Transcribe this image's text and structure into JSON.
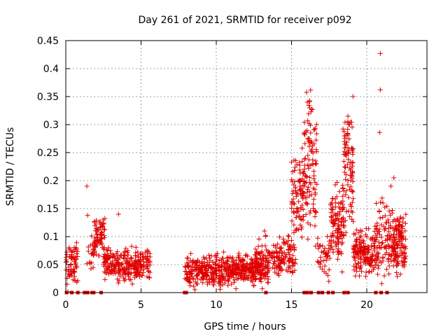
{
  "chart_data": {
    "type": "scatter",
    "title": "Day 261 of 2021, SRMTID for receiver p092",
    "xlabel": "GPS time / hours",
    "ylabel": "SRMTID / TECUs",
    "xlim": [
      0,
      24
    ],
    "ylim": [
      0,
      0.45
    ],
    "x_ticks": [
      0,
      5,
      10,
      15,
      20
    ],
    "x_tick_labels": [
      "0",
      "5",
      "10",
      "15",
      "20"
    ],
    "y_ticks": [
      0,
      0.05,
      0.1,
      0.15,
      0.2,
      0.25,
      0.3,
      0.35,
      0.4,
      0.45
    ],
    "y_tick_labels": [
      "0",
      "0.05",
      "0.1",
      "0.15",
      "0.2",
      "0.25",
      "0.3",
      "0.35",
      "0.4",
      "0.45"
    ],
    "grid": true,
    "marker": "+",
    "series_color": "#e00000",
    "activity_segments": [
      {
        "start": 0.0,
        "end": 0.8,
        "base": 0.05,
        "spread": 0.035,
        "n": 70
      },
      {
        "start": 1.4,
        "end": 1.9,
        "base": 0.07,
        "spread": 0.03,
        "n": 20
      },
      {
        "start": 1.9,
        "end": 2.6,
        "base": 0.1,
        "spread": 0.03,
        "n": 70
      },
      {
        "start": 2.5,
        "end": 3.3,
        "base": 0.05,
        "spread": 0.025,
        "n": 70
      },
      {
        "start": 3.3,
        "end": 5.6,
        "base": 0.05,
        "spread": 0.025,
        "n": 200
      },
      {
        "start": 7.9,
        "end": 13.5,
        "base": 0.04,
        "spread": 0.025,
        "n": 520
      },
      {
        "start": 12.5,
        "end": 14.0,
        "base": 0.06,
        "spread": 0.03,
        "n": 80
      },
      {
        "start": 14.0,
        "end": 15.3,
        "base": 0.065,
        "spread": 0.03,
        "n": 100
      },
      {
        "start": 15.0,
        "end": 15.8,
        "base": 0.18,
        "spread": 0.08,
        "n": 90
      },
      {
        "start": 15.8,
        "end": 16.7,
        "base": 0.22,
        "spread": 0.12,
        "n": 110
      },
      {
        "start": 16.7,
        "end": 17.6,
        "base": 0.07,
        "spread": 0.04,
        "n": 40
      },
      {
        "start": 17.6,
        "end": 18.5,
        "base": 0.12,
        "spread": 0.06,
        "n": 110
      },
      {
        "start": 18.4,
        "end": 19.1,
        "base": 0.22,
        "spread": 0.1,
        "n": 100
      },
      {
        "start": 19.1,
        "end": 20.5,
        "base": 0.07,
        "spread": 0.035,
        "n": 150
      },
      {
        "start": 20.5,
        "end": 21.3,
        "base": 0.1,
        "spread": 0.06,
        "n": 70
      },
      {
        "start": 21.3,
        "end": 22.6,
        "base": 0.09,
        "spread": 0.05,
        "n": 170
      }
    ],
    "notable_points": [
      {
        "x": 1.4,
        "y": 0.19
      },
      {
        "x": 1.45,
        "y": 0.138
      },
      {
        "x": 3.5,
        "y": 0.14
      },
      {
        "x": 13.2,
        "y": 0.11
      },
      {
        "x": 16.05,
        "y": 0.34
      },
      {
        "x": 16.2,
        "y": 0.33
      },
      {
        "x": 18.75,
        "y": 0.315
      },
      {
        "x": 18.85,
        "y": 0.3
      },
      {
        "x": 20.9,
        "y": 0.427
      },
      {
        "x": 20.9,
        "y": 0.362
      },
      {
        "x": 20.85,
        "y": 0.286
      },
      {
        "x": 21.8,
        "y": 0.205
      },
      {
        "x": 21.6,
        "y": 0.19
      }
    ],
    "zero_points_x": [
      0.05,
      0.4,
      0.8,
      1.25,
      1.45,
      1.75,
      1.85,
      2.35,
      7.9,
      8.0,
      13.3,
      15.85,
      16.05,
      16.3,
      16.8,
      17.05,
      17.45,
      17.75,
      18.5,
      18.75,
      20.6,
      20.95,
      21.35
    ]
  }
}
